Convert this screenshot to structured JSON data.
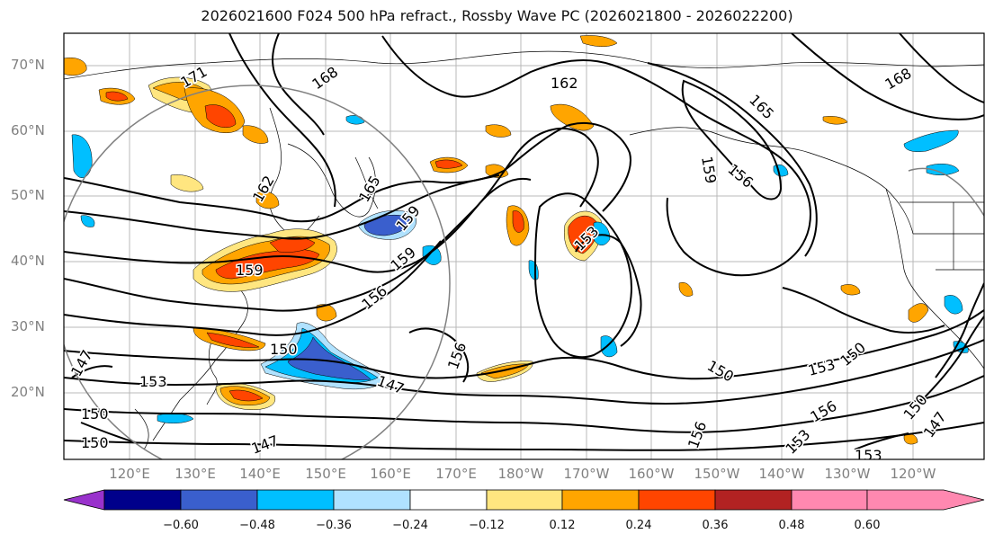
{
  "title": "2026021600 F024 500 hPa refract., Rossby Wave PC (2026021800 - 2026022200)",
  "lat_labels": [
    "70°N",
    "60°N",
    "50°N",
    "40°N",
    "30°N",
    "20°N"
  ],
  "lon_labels": [
    "120°E",
    "130°E",
    "140°E",
    "150°E",
    "160°E",
    "170°E",
    "180°W",
    "170°W",
    "160°W",
    "150°W",
    "140°W",
    "130°W",
    "120°W"
  ],
  "contour_labels": [
    "168",
    "162",
    "165",
    "168",
    "156",
    "162",
    "165",
    "159",
    "159",
    "156",
    "159",
    "153",
    "156",
    "150",
    "147",
    "153",
    "150",
    "147",
    "150",
    "147",
    "150",
    "153",
    "156",
    "150",
    "147",
    "153",
    "156",
    "159",
    "150",
    "153",
    "171"
  ],
  "colorbar": {
    "ticks": [
      "−0.60",
      "−0.48",
      "−0.36",
      "−0.24",
      "−0.12",
      "0.12",
      "0.24",
      "0.36",
      "0.48",
      "0.60"
    ],
    "colors": [
      "#9932cc",
      "#00008b",
      "#3a5fcd",
      "#00bfff",
      "#b0e2ff",
      "#ffffff",
      "#ffe680",
      "#ffa500",
      "#ff4500",
      "#b22222",
      "#ff88b0"
    ]
  },
  "shading_colors": {
    "pos_light": "#ffe680",
    "pos_mid": "#ffa500",
    "pos_strong": "#ff4500",
    "neg_light": "#b0e2ff",
    "neg_mid": "#00bfff",
    "neg_strong": "#3a5fcd"
  }
}
